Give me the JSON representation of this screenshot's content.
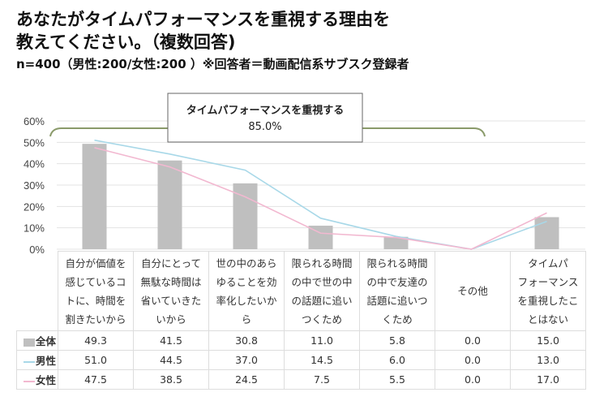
{
  "title_line1": "あなたがタイムパフォーマンスを重視する理由を",
  "title_line2": "教えてください。（複数回答)",
  "subtitle": "n=400（男性:200/女性:200 ）※回答者＝動画配信系サブスク登録者",
  "callout": {
    "label": "タイムパフォーマンスを重視する",
    "value": "85.0%"
  },
  "colors": {
    "bar": "#bfbfbf",
    "male": "#a8d8e8",
    "female": "#f2b8d0",
    "bracket": "#8a9a6a"
  },
  "chart_data": {
    "type": "bar",
    "ylim": [
      0,
      60
    ],
    "yticks": [
      "0%",
      "10%",
      "20%",
      "30%",
      "40%",
      "50%",
      "60%"
    ],
    "grid": true,
    "categories": [
      "自分が価値を感じているコトに、時間を割きたいから",
      "自分にとって無駄な時間は省いていきたいから",
      "世の中のあらゆることを効率化したいから",
      "限られる時間の中で世の中の話題に追いつくため",
      "限られる時間の中で友達の話題に追いつくため",
      "その他",
      "タイムパフォーマンスを重視したことはない"
    ],
    "category_lines": [
      [
        "自分が価値を",
        "感じているコ",
        "トに、時間を",
        "割きたいから"
      ],
      [
        "自分にとって",
        "無駄な時間は",
        "省いていきた",
        "いから"
      ],
      [
        "世の中のあら",
        "ゆることを効",
        "率化したいか",
        "ら"
      ],
      [
        "限られる時間",
        "の中で世の中",
        "の話題に追い",
        "つくため"
      ],
      [
        "限られる時間",
        "の中で友達の",
        "話題に追いつ",
        "くため"
      ],
      [
        "その他"
      ],
      [
        "タイムパ",
        "フォーマンス",
        "を重視したこ",
        "とはない"
      ]
    ],
    "series": [
      {
        "name": "全体",
        "type": "bar",
        "values": [
          49.3,
          41.5,
          30.8,
          11.0,
          5.8,
          0.0,
          15.0
        ],
        "labels": [
          "49.3",
          "41.5",
          "30.8",
          "11.0",
          "5.8",
          "0.0",
          "15.0"
        ]
      },
      {
        "name": "男性",
        "type": "line",
        "values": [
          51.0,
          44.5,
          37.0,
          14.5,
          6.0,
          0.0,
          13.0
        ],
        "labels": [
          "51.0",
          "44.5",
          "37.0",
          "14.5",
          "6.0",
          "0.0",
          "13.0"
        ]
      },
      {
        "name": "女性",
        "type": "line",
        "values": [
          47.5,
          38.5,
          24.5,
          7.5,
          5.5,
          0.0,
          17.0
        ],
        "labels": [
          "47.5",
          "38.5",
          "24.5",
          "7.5",
          "5.5",
          "0.0",
          "17.0"
        ]
      }
    ]
  }
}
